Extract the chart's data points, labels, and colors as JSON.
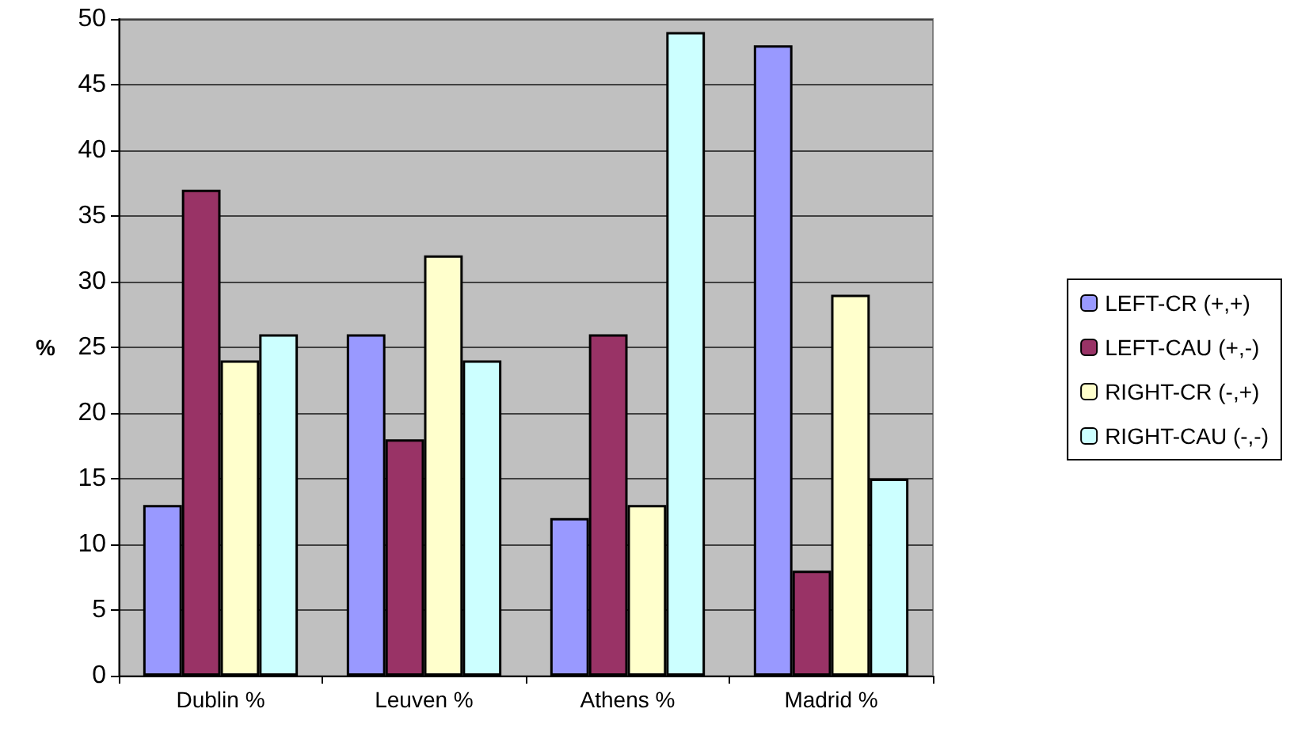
{
  "chart_data": {
    "type": "bar",
    "ylabel": "%",
    "categories": [
      "Dublin %",
      "Leuven %",
      "Athens %",
      "Madrid %"
    ],
    "series": [
      {
        "name": "LEFT-CR (+,+)",
        "color": "#9999ff",
        "values": [
          13,
          26,
          12,
          48
        ]
      },
      {
        "name": "LEFT-CAU (+,-)",
        "color": "#993366",
        "values": [
          37,
          18,
          26,
          8
        ]
      },
      {
        "name": "RIGHT-CR (-,+)",
        "color": "#ffffcc",
        "values": [
          24,
          32,
          13,
          29
        ]
      },
      {
        "name": "RIGHT-CAU (-,-)",
        "color": "#ccffff",
        "values": [
          26,
          24,
          49,
          15
        ]
      }
    ],
    "ylim": [
      0,
      50
    ],
    "yticks": [
      0,
      5,
      10,
      15,
      20,
      25,
      30,
      35,
      40,
      45,
      50
    ],
    "grid": "y",
    "legend": "right"
  }
}
